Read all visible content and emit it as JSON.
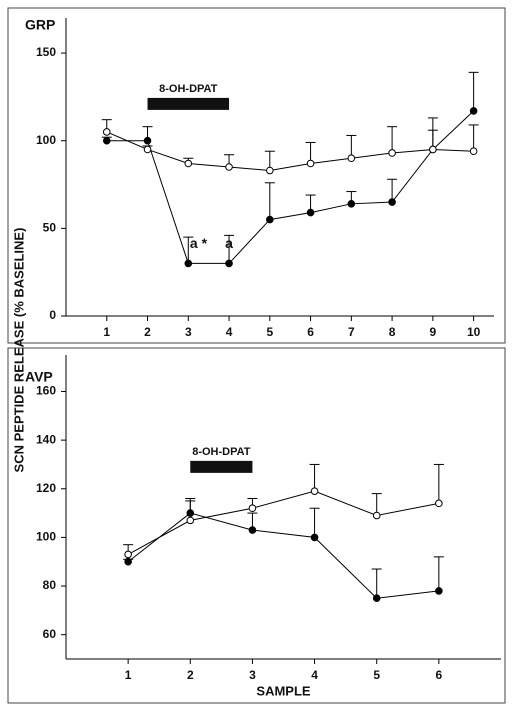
{
  "chart_data": [
    {
      "type": "line",
      "title": "GRP",
      "ylabel": "SCN PEPTIDE RELEASE (% BASELINE)",
      "x": [
        1,
        2,
        3,
        4,
        5,
        6,
        7,
        8,
        9,
        10
      ],
      "xlim": [
        0,
        10.5
      ],
      "xticks": [
        1,
        2,
        3,
        4,
        5,
        6,
        7,
        8,
        9,
        10
      ],
      "ylim": [
        0,
        170
      ],
      "yticks": [
        0,
        50,
        100,
        150
      ],
      "series": [
        {
          "color": "#000000",
          "marker_fill": "#000000",
          "values": [
            100,
            100,
            30,
            30,
            55,
            59,
            64,
            65,
            95,
            117
          ],
          "errors": [
            2,
            8,
            15,
            16,
            21,
            10,
            7,
            13,
            11,
            22
          ]
        },
        {
          "color": "#000000",
          "marker_fill": "#ffffff",
          "values": [
            105,
            95,
            87,
            85,
            83,
            87,
            90,
            93,
            95,
            94
          ],
          "errors": [
            7,
            2,
            3,
            7,
            11,
            12,
            13,
            15,
            18,
            15
          ]
        }
      ],
      "annotations": [
        {
          "text": "8-OH-DPAT",
          "x": [
            2,
            4
          ],
          "y": 121
        },
        {
          "text": "a *",
          "x": [
            3.25
          ],
          "y": 41
        },
        {
          "text": "a",
          "x": [
            4
          ],
          "y": 41
        }
      ]
    },
    {
      "type": "line",
      "title": "AVP",
      "xlabel": "SAMPLE",
      "x": [
        1,
        2,
        3,
        4,
        5,
        6
      ],
      "xlim": [
        0,
        7
      ],
      "xticks": [
        1,
        2,
        3,
        4,
        5,
        6
      ],
      "ylim": [
        50,
        175
      ],
      "yticks": [
        60,
        80,
        100,
        120,
        140,
        160
      ],
      "series": [
        {
          "color": "#000000",
          "marker_fill": "#000000",
          "values": [
            90,
            110,
            103,
            100,
            75,
            78
          ],
          "errors": [
            1,
            5,
            7,
            12,
            12,
            14
          ]
        },
        {
          "color": "#000000",
          "marker_fill": "#ffffff",
          "values": [
            93,
            107,
            112,
            119,
            109,
            114
          ],
          "errors": [
            4,
            9,
            4,
            11,
            9,
            16
          ]
        }
      ],
      "annotations": [
        {
          "text": "8-OH-DPAT",
          "x": [
            2,
            3
          ],
          "y": 129
        }
      ]
    }
  ]
}
